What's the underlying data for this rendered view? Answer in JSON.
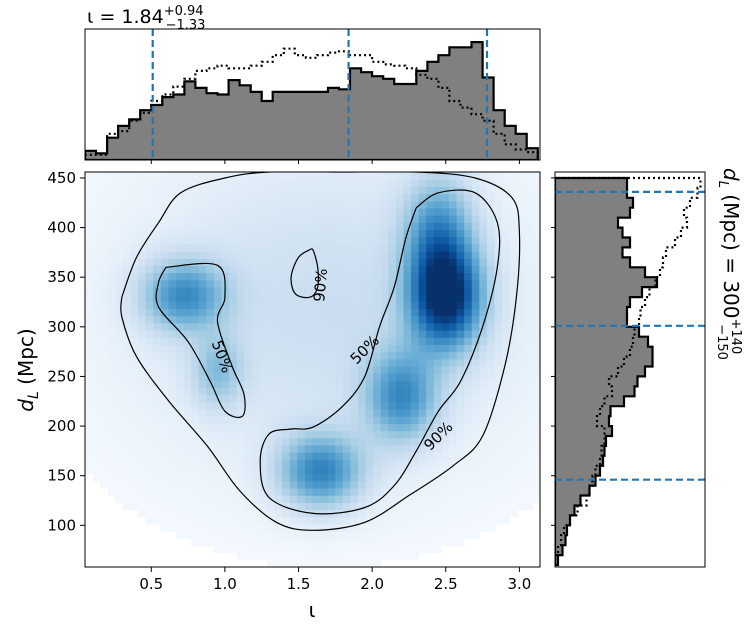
{
  "chart_data": [
    {
      "type": "heatmap",
      "panel": "joint",
      "xlabel": "ι",
      "ylabel_main": "d",
      "ylabel_sub": "L",
      "ylabel_unit": " (Mpc)",
      "xlim": [
        0.05,
        3.14
      ],
      "ylim": [
        58,
        456
      ],
      "xticks": [
        0.5,
        1.0,
        1.5,
        2.0,
        2.5,
        3.0
      ],
      "xtick_labels": [
        "0.5",
        "1.0",
        "1.5",
        "2.0",
        "2.5",
        "3.0"
      ],
      "yticks": [
        100,
        150,
        200,
        250,
        300,
        350,
        400,
        450
      ],
      "ytick_labels": [
        "100",
        "150",
        "200",
        "250",
        "300",
        "350",
        "400",
        "450"
      ],
      "colormap": "Blues",
      "density_peaks": [
        {
          "x": 2.5,
          "y": 330,
          "relative_height": 1.0
        },
        {
          "x": 2.2,
          "y": 230,
          "relative_height": 0.55
        },
        {
          "x": 1.65,
          "y": 155,
          "relative_height": 0.62
        },
        {
          "x": 0.72,
          "y": 332,
          "relative_height": 0.55
        },
        {
          "x": 0.95,
          "y": 255,
          "relative_height": 0.3
        },
        {
          "x": 2.45,
          "y": 395,
          "relative_height": 0.5
        }
      ],
      "contours": [
        {
          "label": "50%",
          "label_pos": [
            0.98,
            270
          ],
          "label_angle": 70,
          "path": [
            [
              0.6,
              360
            ],
            [
              0.95,
              362
            ],
            [
              1.0,
              330
            ],
            [
              0.95,
              305
            ],
            [
              1.05,
              260
            ],
            [
              1.13,
              232
            ],
            [
              1.12,
              210
            ],
            [
              1.0,
              215
            ],
            [
              0.9,
              245
            ],
            [
              0.75,
              285
            ],
            [
              0.55,
              320
            ],
            [
              0.55,
              345
            ],
            [
              0.6,
              360
            ]
          ]
        },
        {
          "label": "90%",
          "label_pos": [
            1.65,
            342
          ],
          "label_angle": -85,
          "path": [
            [
              1.58,
              378
            ],
            [
              1.5,
              370
            ],
            [
              1.45,
              350
            ],
            [
              1.48,
              333
            ],
            [
              1.58,
              330
            ],
            [
              1.63,
              340
            ],
            [
              1.63,
              360
            ],
            [
              1.6,
              377
            ],
            [
              1.58,
              378
            ]
          ]
        },
        {
          "label": "50%",
          "label_pos": [
            1.95,
            277
          ],
          "label_angle": -45,
          "path": [
            [
              2.3,
              420
            ],
            [
              2.45,
              435
            ],
            [
              2.7,
              435
            ],
            [
              2.85,
              405
            ],
            [
              2.85,
              360
            ],
            [
              2.75,
              300
            ],
            [
              2.6,
              245
            ],
            [
              2.45,
              215
            ],
            [
              2.3,
              175
            ],
            [
              2.15,
              140
            ],
            [
              1.95,
              118
            ],
            [
              1.6,
              112
            ],
            [
              1.3,
              128
            ],
            [
              1.24,
              165
            ],
            [
              1.3,
              192
            ],
            [
              1.45,
              197
            ],
            [
              1.6,
              199
            ],
            [
              1.8,
              220
            ],
            [
              1.95,
              250
            ],
            [
              2.05,
              300
            ],
            [
              2.15,
              340
            ],
            [
              2.23,
              390
            ],
            [
              2.3,
              420
            ]
          ]
        },
        {
          "label": "90%",
          "label_pos": [
            2.45,
            190
          ],
          "label_angle": -45,
          "path": [
            [
              0.3,
              330
            ],
            [
              0.4,
              370
            ],
            [
              0.55,
              405
            ],
            [
              0.7,
              435
            ],
            [
              1.0,
              450
            ],
            [
              1.3,
              456
            ],
            [
              1.8,
              456
            ],
            [
              2.3,
              456
            ],
            [
              2.7,
              450
            ],
            [
              2.95,
              430
            ],
            [
              3.0,
              395
            ],
            [
              2.98,
              330
            ],
            [
              2.9,
              260
            ],
            [
              2.75,
              190
            ],
            [
              2.55,
              160
            ],
            [
              2.25,
              130
            ],
            [
              1.95,
              103
            ],
            [
              1.6,
              95
            ],
            [
              1.35,
              103
            ],
            [
              1.1,
              135
            ],
            [
              0.88,
              180
            ],
            [
              0.62,
              225
            ],
            [
              0.4,
              270
            ],
            [
              0.3,
              310
            ],
            [
              0.3,
              330
            ]
          ]
        }
      ]
    },
    {
      "type": "area",
      "panel": "top-marginal",
      "title_prefix": "ι = 1.84",
      "title_sup": "+0.94",
      "title_sub": "−1.33",
      "xlim": [
        0.05,
        3.14
      ],
      "ylim": [
        0,
        1.0
      ],
      "quantile_lines": [
        0.51,
        1.84,
        2.78
      ],
      "bin_edges": [
        0.05,
        0.125,
        0.2,
        0.275,
        0.35,
        0.425,
        0.5,
        0.575,
        0.65,
        0.725,
        0.8,
        0.875,
        0.95,
        1.025,
        1.1,
        1.175,
        1.25,
        1.325,
        1.4,
        1.475,
        1.55,
        1.625,
        1.7,
        1.775,
        1.85,
        1.925,
        2.0,
        2.075,
        2.15,
        2.225,
        2.3,
        2.375,
        2.45,
        2.525,
        2.6,
        2.675,
        2.75,
        2.825,
        2.9,
        2.975,
        3.05,
        3.125
      ],
      "series": [
        {
          "style": "filled-step",
          "color": "#808080",
          "values": [
            0.07,
            0.05,
            0.17,
            0.26,
            0.31,
            0.38,
            0.42,
            0.48,
            0.5,
            0.6,
            0.55,
            0.51,
            0.5,
            0.61,
            0.57,
            0.52,
            0.45,
            0.52,
            0.52,
            0.52,
            0.52,
            0.52,
            0.55,
            0.54,
            0.7,
            0.67,
            0.64,
            0.62,
            0.58,
            0.58,
            0.68,
            0.75,
            0.8,
            0.86,
            0.86,
            0.9,
            0.63,
            0.38,
            0.26,
            0.2,
            0.09
          ]
        },
        {
          "style": "dotted-step",
          "color": "#000000",
          "values": [
            0.04,
            0.04,
            0.2,
            0.22,
            0.3,
            0.36,
            0.45,
            0.5,
            0.56,
            0.62,
            0.68,
            0.7,
            0.72,
            0.7,
            0.7,
            0.72,
            0.75,
            0.8,
            0.85,
            0.8,
            0.78,
            0.8,
            0.82,
            0.83,
            0.8,
            0.8,
            0.75,
            0.73,
            0.72,
            0.7,
            0.65,
            0.62,
            0.55,
            0.45,
            0.4,
            0.35,
            0.3,
            0.2,
            0.12,
            0.08,
            0.06
          ]
        }
      ]
    },
    {
      "type": "area",
      "panel": "right-marginal",
      "label_main": "d",
      "label_sub": "L",
      "label_mid": " (Mpc) = 300",
      "label_sup": "+140",
      "label_subs": "−150",
      "ylim": [
        58,
        456
      ],
      "quantile_lines": [
        436,
        301,
        146
      ],
      "bin_edges": [
        60,
        70,
        80,
        90,
        100,
        110,
        120,
        130,
        140,
        150,
        160,
        170,
        180,
        190,
        200,
        210,
        220,
        230,
        240,
        250,
        260,
        270,
        280,
        290,
        300,
        310,
        320,
        330,
        340,
        350,
        360,
        370,
        380,
        390,
        400,
        410,
        420,
        430,
        440,
        450
      ],
      "series": [
        {
          "style": "filled-step",
          "color": "#808080",
          "values": [
            0.02,
            0.05,
            0.07,
            0.08,
            0.1,
            0.13,
            0.17,
            0.23,
            0.27,
            0.3,
            0.32,
            0.33,
            0.34,
            0.38,
            0.36,
            0.37,
            0.46,
            0.53,
            0.55,
            0.6,
            0.65,
            0.65,
            0.62,
            0.56,
            0.48,
            0.48,
            0.5,
            0.58,
            0.68,
            0.6,
            0.5,
            0.45,
            0.5,
            0.45,
            0.42,
            0.5,
            0.52,
            0.48,
            0.48
          ]
        },
        {
          "style": "dotted-step",
          "color": "#000000",
          "values": [
            0.0,
            0.02,
            0.04,
            0.06,
            0.1,
            0.15,
            0.21,
            0.23,
            0.25,
            0.27,
            0.3,
            0.31,
            0.33,
            0.33,
            0.28,
            0.3,
            0.33,
            0.38,
            0.36,
            0.42,
            0.46,
            0.5,
            0.52,
            0.53,
            0.56,
            0.57,
            0.6,
            0.63,
            0.67,
            0.7,
            0.72,
            0.74,
            0.8,
            0.84,
            0.88,
            0.86,
            0.9,
            0.95,
            0.97
          ]
        }
      ]
    }
  ]
}
